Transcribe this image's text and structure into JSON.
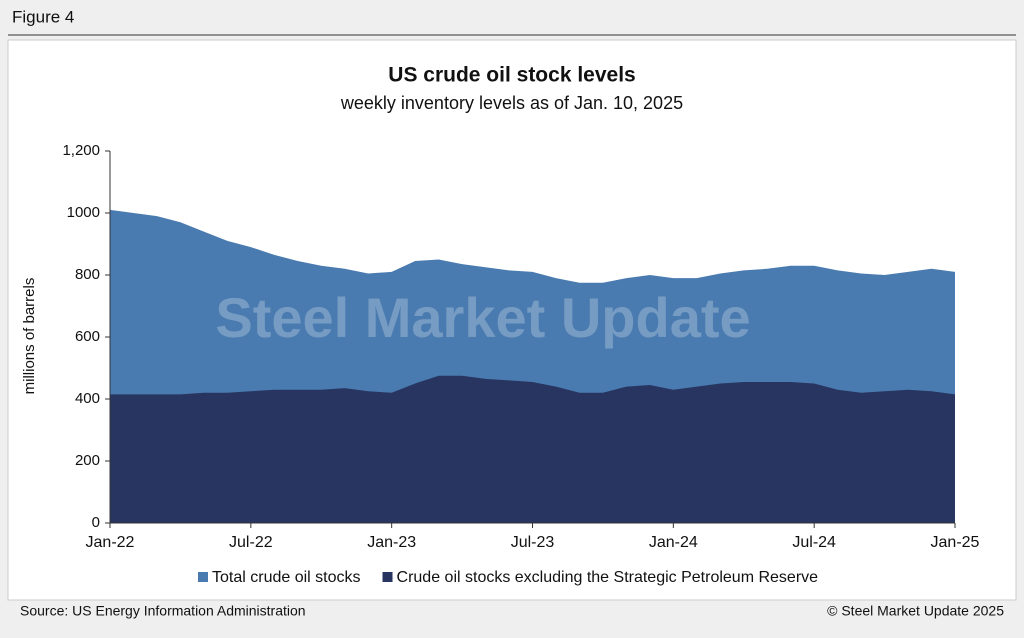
{
  "figure_label": "Figure 4",
  "source": "Source: US Energy Information Administration",
  "copyright": "© Steel Market Update 2025",
  "watermark": "Steel Market Update",
  "chart_data": {
    "type": "area",
    "title": "US crude oil stock levels",
    "subtitle": "weekly inventory levels as of Jan. 10, 2025",
    "y_label": "millions of barrels",
    "categories": [
      "Jan-22",
      null,
      null,
      null,
      null,
      null,
      "Jul-22",
      null,
      null,
      null,
      null,
      null,
      "Jan-23",
      null,
      null,
      null,
      null,
      null,
      "Jul-23",
      null,
      null,
      null,
      null,
      null,
      "Jan-24",
      null,
      null,
      null,
      null,
      null,
      "Jul-24",
      null,
      null,
      null,
      null,
      null,
      "Jan-25"
    ],
    "series": [
      {
        "name": "Total crude oil stocks",
        "color": "#4a7bb0",
        "values": [
          1010,
          1000,
          990,
          970,
          940,
          910,
          890,
          865,
          845,
          830,
          820,
          805,
          810,
          845,
          850,
          835,
          825,
          815,
          810,
          790,
          775,
          775,
          790,
          800,
          790,
          790,
          805,
          815,
          820,
          830,
          830,
          815,
          805,
          800,
          810,
          820,
          810
        ]
      },
      {
        "name": "Crude oil stocks excluding the Strategic Petroleum Reserve",
        "color": "#283560",
        "values": [
          415,
          415,
          415,
          415,
          420,
          420,
          425,
          430,
          430,
          430,
          435,
          425,
          420,
          450,
          475,
          475,
          465,
          460,
          455,
          440,
          420,
          420,
          440,
          445,
          430,
          440,
          450,
          455,
          455,
          455,
          450,
          430,
          420,
          425,
          430,
          425,
          415
        ]
      }
    ],
    "ylim": [
      0,
      1200
    ],
    "yticks": [
      0,
      200,
      400,
      600,
      800,
      1000,
      {
        "value": 1200,
        "label": "1,200"
      }
    ],
    "legend": "bottom"
  }
}
